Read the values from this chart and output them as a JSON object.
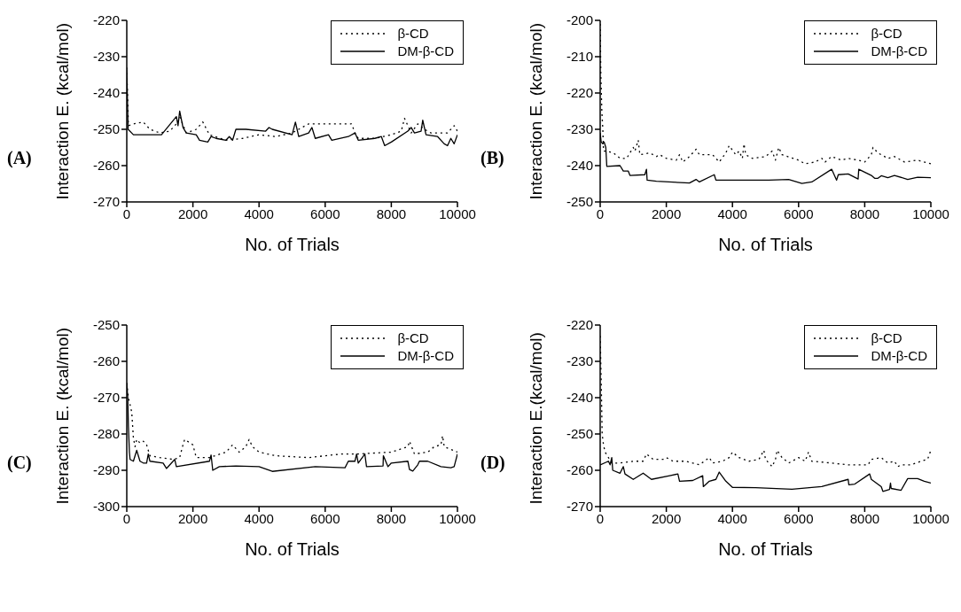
{
  "chart_data": [
    {
      "type": "line",
      "annotations": [
        "(A)"
      ],
      "ylabel": "Interaction E. (kcal/mol)",
      "xlabel": "No. of Trials",
      "xlim": [
        0,
        10000
      ],
      "xticks": [
        0,
        2000,
        4000,
        6000,
        8000,
        10000
      ],
      "ylim": [
        -270,
        -220
      ],
      "yticks": [
        -270,
        -260,
        -250,
        -240,
        -230,
        -220
      ],
      "legend": "top right",
      "grid": false,
      "marker": "none",
      "series": [
        {
          "name": "β-CD",
          "color": "#000000",
          "line_style": "dotted",
          "x": [
            0,
            50,
            200,
            500,
            700,
            1000,
            1300,
            1550,
            1600,
            1800,
            2100,
            2200,
            2300,
            2500,
            3000,
            3500,
            4000,
            4500,
            5000,
            5300,
            5500,
            6800,
            6900,
            7000,
            7500,
            8000,
            8300,
            8400,
            8600,
            8800,
            9000,
            9200,
            9700,
            9900,
            10000
          ],
          "values": [
            -233,
            -249,
            -248.5,
            -248,
            -250,
            -251,
            -250.5,
            -248,
            -246.5,
            -251,
            -250,
            -249,
            -248,
            -251.5,
            -253,
            -252.5,
            -251.5,
            -252,
            -251,
            -249.5,
            -248.5,
            -248.5,
            -251,
            -252.5,
            -252.5,
            -251.5,
            -250.5,
            -247,
            -251,
            -248.5,
            -250,
            -251,
            -251,
            -249,
            -250.5
          ]
        },
        {
          "name": "DM-β-CD",
          "color": "#000000",
          "line_style": "solid",
          "x": [
            0,
            40,
            200,
            1050,
            1500,
            1550,
            1600,
            1700,
            1800,
            2100,
            2200,
            2450,
            2550,
            2700,
            3000,
            3100,
            3200,
            3300,
            3600,
            4200,
            4300,
            4400,
            5000,
            5100,
            5200,
            5500,
            5600,
            5700,
            6100,
            6200,
            6700,
            6900,
            7000,
            7500,
            7700,
            7800,
            8000,
            8500,
            8600,
            8700,
            8900,
            8950,
            9050,
            9400,
            9600,
            9700,
            9800,
            9900,
            10000
          ],
          "values": [
            -233.5,
            -250,
            -251.5,
            -251.5,
            -246.5,
            -249,
            -245,
            -249.5,
            -251,
            -251.5,
            -253,
            -253.5,
            -252,
            -252.5,
            -253,
            -252,
            -253,
            -250,
            -250,
            -250.5,
            -249.5,
            -250,
            -251.5,
            -248,
            -252,
            -251,
            -249.5,
            -252.5,
            -251.5,
            -253,
            -252,
            -251,
            -253,
            -252.5,
            -252,
            -254.5,
            -253.5,
            -250.5,
            -249.5,
            -251,
            -250.5,
            -247.5,
            -251.5,
            -252,
            -254,
            -254.5,
            -252.5,
            -254,
            -251.5
          ]
        }
      ]
    },
    {
      "type": "line",
      "annotations": [
        "(B)"
      ],
      "ylabel": "Interaction E. (kcal/mol)",
      "xlabel": "No. of Trials",
      "xlim": [
        0,
        10000
      ],
      "xticks": [
        0,
        2000,
        4000,
        6000,
        8000,
        10000
      ],
      "ylim": [
        -250,
        -200
      ],
      "yticks": [
        -250,
        -240,
        -230,
        -220,
        -210,
        -200
      ],
      "legend": "top right",
      "grid": false,
      "marker": "none",
      "series": [
        {
          "name": "β-CD",
          "color": "#000000",
          "line_style": "dotted",
          "x": [
            0,
            20,
            50,
            80,
            100,
            200,
            400,
            600,
            800,
            1000,
            1050,
            1100,
            1150,
            1200,
            1500,
            1700,
            1800,
            2000,
            2300,
            2400,
            2500,
            2700,
            2900,
            3000,
            3400,
            3600,
            3800,
            3900,
            4100,
            4200,
            4300,
            4350,
            4400,
            4600,
            5000,
            5200,
            5300,
            5400,
            5500,
            6000,
            6200,
            6500,
            6700,
            6800,
            7000,
            7300,
            7500,
            7800,
            8000,
            8200,
            8250,
            8400,
            8700,
            8900,
            9200,
            9600,
            10000
          ],
          "values": [
            -201,
            -215,
            -225,
            -230,
            -236,
            -236,
            -236.5,
            -238,
            -238,
            -235,
            -236,
            -234.5,
            -233,
            -237,
            -236.5,
            -237.5,
            -237,
            -238,
            -238.5,
            -237,
            -239,
            -237.5,
            -235.5,
            -237,
            -237,
            -239,
            -236.5,
            -234.5,
            -237,
            -236,
            -238,
            -234,
            -237,
            -238,
            -237.5,
            -236,
            -238.5,
            -235,
            -237,
            -238.5,
            -239.5,
            -239,
            -238,
            -239,
            -237.5,
            -238.5,
            -238,
            -238.5,
            -239,
            -237,
            -235,
            -236.5,
            -238,
            -237.5,
            -239,
            -238.5,
            -239.5
          ]
        },
        {
          "name": "DM-β-CD",
          "color": "#000000",
          "line_style": "solid",
          "x": [
            0,
            30,
            80,
            120,
            170,
            200,
            600,
            700,
            850,
            900,
            1350,
            1400,
            1420,
            1700,
            2700,
            2900,
            3000,
            3450,
            3500,
            5100,
            5700,
            6100,
            6400,
            7000,
            7150,
            7200,
            7500,
            7800,
            7820,
            8200,
            8300,
            8400,
            8500,
            8700,
            8900,
            9300,
            9600,
            10000
          ],
          "values": [
            -231,
            -233.5,
            -234,
            -233.5,
            -235,
            -240.2,
            -240,
            -241.5,
            -241.5,
            -242.7,
            -242.5,
            -241,
            -244,
            -244.3,
            -244.8,
            -243.8,
            -244.5,
            -242.5,
            -244,
            -244,
            -243.8,
            -244.9,
            -244.5,
            -241,
            -244,
            -242.5,
            -242.3,
            -243.7,
            -241,
            -242.7,
            -243.5,
            -243.5,
            -242.8,
            -243.3,
            -242.7,
            -243.8,
            -243.2,
            -243.3
          ]
        }
      ]
    },
    {
      "type": "line",
      "annotations": [
        "(C)"
      ],
      "ylabel": "Interaction E. (kcal/mol)",
      "xlabel": "No. of Trials",
      "xlim": [
        0,
        10000
      ],
      "xticks": [
        0,
        2000,
        4000,
        6000,
        8000,
        10000
      ],
      "ylim": [
        -300,
        -250
      ],
      "yticks": [
        -300,
        -290,
        -280,
        -270,
        -260,
        -250
      ],
      "legend": "top right",
      "grid": false,
      "marker": "none",
      "series": [
        {
          "name": "β-CD",
          "color": "#000000",
          "line_style": "dotted",
          "x": [
            0,
            50,
            100,
            150,
            200,
            250,
            300,
            400,
            500,
            600,
            700,
            1000,
            1400,
            1600,
            1700,
            1750,
            2000,
            2100,
            2500,
            3000,
            3200,
            3400,
            3600,
            3700,
            3800,
            4000,
            4500,
            5500,
            6500,
            7000,
            8000,
            8500,
            8550,
            8700,
            9100,
            9300,
            9500,
            9550,
            9600,
            10000
          ],
          "values": [
            -266,
            -270,
            -272,
            -274,
            -281,
            -283.5,
            -281.5,
            -282.5,
            -282,
            -283,
            -286,
            -286.5,
            -287,
            -286.5,
            -283,
            -281.5,
            -283,
            -286.5,
            -286.5,
            -285,
            -283,
            -285,
            -283.5,
            -281.5,
            -283.5,
            -285,
            -286,
            -286.5,
            -285.5,
            -285.5,
            -285,
            -283.5,
            -282,
            -285.5,
            -285,
            -283.5,
            -283,
            -280.5,
            -283.5,
            -285
          ]
        },
        {
          "name": "DM-β-CD",
          "color": "#000000",
          "line_style": "solid",
          "x": [
            0,
            30,
            50,
            80,
            100,
            200,
            300,
            400,
            500,
            600,
            650,
            700,
            1100,
            1200,
            1450,
            1500,
            2500,
            2550,
            2600,
            2800,
            3300,
            4000,
            4400,
            5700,
            6600,
            6700,
            6900,
            6950,
            7000,
            7200,
            7250,
            7750,
            7760,
            7900,
            8000,
            8500,
            8550,
            8650,
            8800,
            8850,
            9100,
            9500,
            9800,
            9900,
            10000
          ],
          "values": [
            -266,
            -270,
            -278,
            -285,
            -287,
            -287.5,
            -284.5,
            -287.5,
            -288,
            -288,
            -285.5,
            -287.5,
            -288,
            -289.5,
            -287,
            -289,
            -287.5,
            -285.8,
            -290,
            -289,
            -288.8,
            -289,
            -290.3,
            -289,
            -289.3,
            -287.5,
            -287.5,
            -285.5,
            -288,
            -285.5,
            -289,
            -288.8,
            -286,
            -289,
            -288,
            -287.5,
            -289.8,
            -290.2,
            -288.5,
            -287.5,
            -287.5,
            -289,
            -289.3,
            -289,
            -285.5
          ]
        }
      ]
    },
    {
      "type": "line",
      "annotations": [
        "(D)"
      ],
      "ylabel": "Interaction E.(kcal/mol)",
      "xlabel": "No. of Trials",
      "xlim": [
        0,
        10000
      ],
      "xticks": [
        0,
        2000,
        4000,
        6000,
        8000,
        10000
      ],
      "ylim": [
        -270,
        -220
      ],
      "yticks": [
        -270,
        -260,
        -250,
        -240,
        -230,
        -220
      ],
      "legend": "top right",
      "grid": false,
      "marker": "none",
      "series": [
        {
          "name": "β-CD",
          "color": "#000000",
          "line_style": "dotted",
          "x": [
            0,
            30,
            60,
            100,
            150,
            250,
            350,
            600,
            1000,
            1300,
            1400,
            1600,
            1900,
            2000,
            2200,
            2600,
            2800,
            3000,
            3300,
            3400,
            3700,
            3900,
            4000,
            4200,
            4500,
            4800,
            4950,
            5000,
            5200,
            5300,
            5350,
            5500,
            5700,
            6000,
            6200,
            6300,
            6400,
            7000,
            7500,
            8100,
            8200,
            8500,
            8700,
            8900,
            9000,
            9100,
            9400,
            9700,
            9900,
            10000
          ],
          "values": [
            -223,
            -235,
            -250,
            -253,
            -255,
            -256.5,
            -258,
            -258,
            -257.5,
            -257.5,
            -255.5,
            -257,
            -257,
            -256.5,
            -257.5,
            -257.5,
            -258,
            -258.5,
            -256.5,
            -258,
            -257.5,
            -256.5,
            -255,
            -256.5,
            -257.5,
            -257,
            -254.5,
            -257,
            -259,
            -257,
            -254.5,
            -256.5,
            -258,
            -256.5,
            -257.5,
            -255,
            -257.5,
            -258,
            -258.5,
            -258.5,
            -257,
            -256.5,
            -258,
            -257.5,
            -259,
            -258.5,
            -258.5,
            -257.5,
            -257,
            -254.5
          ]
        },
        {
          "name": "DM-β-CD",
          "color": "#000000",
          "line_style": "solid",
          "x": [
            0,
            250,
            300,
            350,
            380,
            600,
            700,
            750,
            1000,
            1300,
            1550,
            2100,
            2350,
            2400,
            2800,
            3100,
            3120,
            3300,
            3500,
            3600,
            3800,
            4000,
            4700,
            5800,
            6700,
            7500,
            7520,
            7700,
            8150,
            8200,
            8500,
            8550,
            8750,
            8780,
            8800,
            9100,
            9300,
            9600,
            9800,
            10000
          ],
          "values": [
            -258.5,
            -257.5,
            -258.5,
            -256.5,
            -260,
            -260.8,
            -259,
            -261,
            -262.5,
            -260.8,
            -262.5,
            -261.5,
            -261,
            -263,
            -262.8,
            -261.5,
            -264.5,
            -263,
            -262.5,
            -260.5,
            -263,
            -264.7,
            -264.8,
            -265.2,
            -264.5,
            -262.5,
            -264,
            -263.8,
            -261,
            -262.5,
            -264.5,
            -265.8,
            -265.3,
            -263.5,
            -265,
            -265.5,
            -262.3,
            -262.3,
            -263,
            -263.5
          ]
        }
      ]
    }
  ]
}
